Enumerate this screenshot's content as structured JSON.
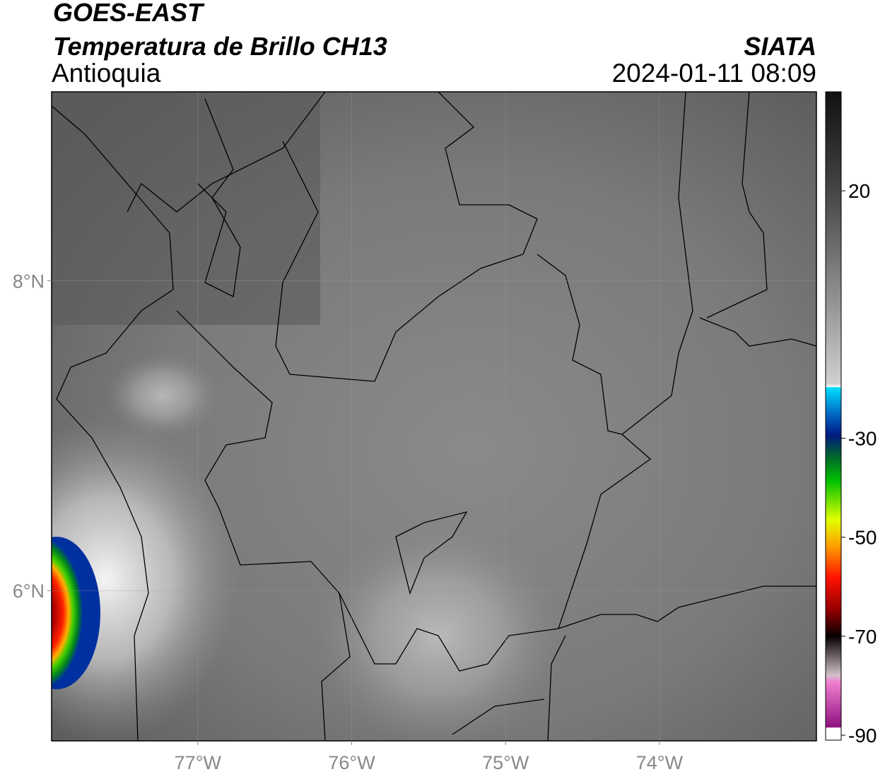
{
  "header": {
    "satellite": "GOES-EAST",
    "product": "Temperatura de Brillo CH13",
    "region": "Antioquia",
    "agency": "SIATA",
    "datetime": "2024-01-11 08:09"
  },
  "map": {
    "xlim": [
      -77.95,
      -72.98
    ],
    "ylim": [
      5.03,
      9.22
    ],
    "xticks": [
      {
        "value": -77,
        "label": "77°W"
      },
      {
        "value": -76,
        "label": "76°W"
      },
      {
        "value": -75,
        "label": "75°W"
      },
      {
        "value": -74,
        "label": "74°W"
      }
    ],
    "yticks": [
      {
        "value": 8,
        "label": "8°N"
      },
      {
        "value": 6,
        "label": "6°N"
      }
    ]
  },
  "colorbar": {
    "lim": [
      -91,
      40
    ],
    "ticks": [
      20,
      -30,
      -50,
      -70,
      -90
    ]
  }
}
